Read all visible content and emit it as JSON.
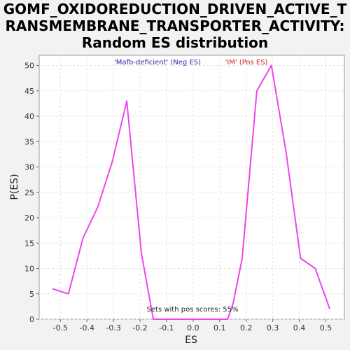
{
  "chart_data": {
    "type": "line",
    "title_lines": [
      "GOMF_OXIDOREDUCTION_DRIVEN_ACTIVE_T",
      "RANSMEMBRANE_TRANSPORTER_ACTIVITY:",
      "Random ES distribution"
    ],
    "xlabel": "ES",
    "ylabel": "P(ES)",
    "xlim": [
      -0.58,
      0.57
    ],
    "ylim": [
      0,
      52
    ],
    "xticks": [
      -0.5,
      -0.4,
      -0.3,
      -0.2,
      -0.1,
      0.0,
      0.1,
      0.2,
      0.3,
      0.4,
      0.5
    ],
    "xtick_labels": [
      "-0.5",
      "-0.4",
      "-0.3",
      "-0.2",
      "-0.1",
      "0.0",
      "0.1",
      "0.2",
      "0.3",
      "0.4",
      "0.5"
    ],
    "yticks": [
      0,
      5,
      10,
      15,
      20,
      25,
      30,
      35,
      40,
      45,
      50
    ],
    "ytick_labels": [
      "0",
      "5",
      "10",
      "15",
      "20",
      "25",
      "30",
      "35",
      "40",
      "45",
      "50"
    ],
    "grid": true,
    "series": [
      {
        "color": "#ee44ee",
        "x": [
          -0.53,
          -0.47,
          -0.415,
          -0.36,
          -0.305,
          -0.25,
          -0.195,
          -0.15,
          -0.1,
          -0.05,
          0.0,
          0.05,
          0.1,
          0.13,
          0.15,
          0.185,
          0.24,
          0.295,
          0.35,
          0.405,
          0.46,
          0.515
        ],
        "y": [
          6,
          5,
          16,
          22,
          31,
          43,
          13,
          0,
          0,
          0,
          0,
          0,
          0,
          0,
          3,
          12,
          45,
          50,
          33,
          12,
          10,
          2
        ]
      }
    ],
    "legend": {
      "neg_label": "'Mafb-deficient' (Neg ES)",
      "pos_label": "'IM' (Pos ES)",
      "neg_color": "#2a2aa8",
      "pos_color": "#d42020"
    },
    "annotation": "Sets with pos scores: 55%"
  }
}
